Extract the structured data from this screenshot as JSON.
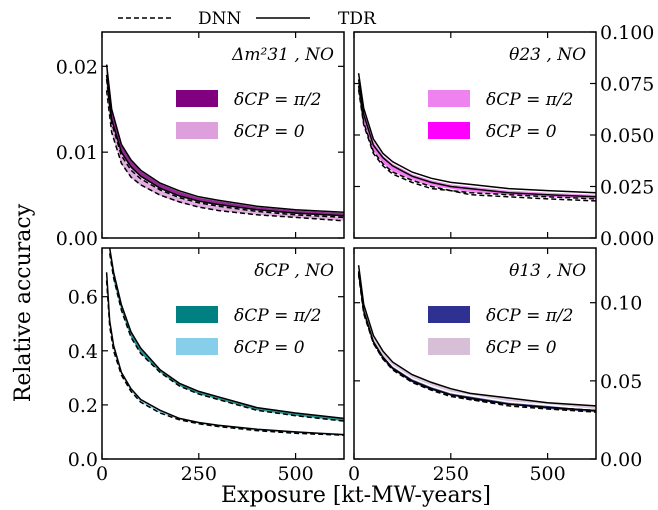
{
  "xlabel": "Exposure [kt-MW-years]",
  "ylabel": "Relative accuracy",
  "top_legend": {
    "dnn_label": "DNN",
    "tdr_label": "TDR"
  },
  "chart_data": [
    {
      "type": "line",
      "panel": "top-left",
      "annotation": "Δm²31 , NO",
      "xlim": [
        0,
        625
      ],
      "ylim": [
        0,
        0.024
      ],
      "x_ticks": [
        0,
        250,
        500
      ],
      "x_tick_labels": [
        "",
        "",
        ""
      ],
      "y_ticks": [
        0,
        0.01,
        0.02
      ],
      "y_tick_labels": [
        "0.00",
        "0.01",
        "0.02"
      ],
      "y_axis_side": "left",
      "legend": [
        {
          "label": "δCP = π/2",
          "color": "#800080"
        },
        {
          "label": "δCP = 0",
          "color": "#dda0dd"
        }
      ],
      "band_pi2": {
        "color": "#800080",
        "x": [
          12,
          25,
          50,
          75,
          100,
          150,
          200,
          250,
          300,
          400,
          500,
          625
        ],
        "lower": [
          0.0185,
          0.0135,
          0.0098,
          0.0081,
          0.0071,
          0.0057,
          0.0048,
          0.0042,
          0.0038,
          0.0032,
          0.0028,
          0.0025
        ],
        "upper": [
          0.02,
          0.0148,
          0.0108,
          0.009,
          0.0078,
          0.0063,
          0.0054,
          0.0047,
          0.0043,
          0.0036,
          0.0032,
          0.0029
        ]
      },
      "band_0": {
        "color": "#dda0dd",
        "x": [
          12,
          25,
          50,
          75,
          100,
          150,
          200,
          250,
          300,
          400,
          500,
          625
        ],
        "lower": [
          0.017,
          0.0122,
          0.0086,
          0.007,
          0.0061,
          0.0049,
          0.0041,
          0.0036,
          0.0032,
          0.0027,
          0.0024,
          0.002
        ],
        "upper": [
          0.019,
          0.0136,
          0.0097,
          0.008,
          0.007,
          0.0056,
          0.0047,
          0.0041,
          0.0037,
          0.0031,
          0.0027,
          0.0024
        ]
      },
      "tdr_lines": [
        {
          "x": [
            12,
            25,
            50,
            75,
            100,
            150,
            200,
            250,
            300,
            400,
            500,
            625
          ],
          "y": [
            0.0202,
            0.015,
            0.0109,
            0.0091,
            0.0079,
            0.0064,
            0.0055,
            0.0048,
            0.0044,
            0.0037,
            0.0033,
            0.003
          ]
        },
        {
          "x": [
            12,
            25,
            50,
            75,
            100,
            150,
            200,
            250,
            300,
            400,
            500,
            625
          ],
          "y": [
            0.019,
            0.0138,
            0.01,
            0.0083,
            0.0072,
            0.0058,
            0.0049,
            0.0043,
            0.0039,
            0.0033,
            0.0029,
            0.0026
          ]
        }
      ],
      "dnn_lines": [
        {
          "x": [
            12,
            25,
            50,
            75,
            100,
            150,
            200,
            250,
            300,
            400,
            500,
            625
          ],
          "y": [
            0.0185,
            0.0134,
            0.0096,
            0.0079,
            0.0069,
            0.0056,
            0.0047,
            0.0041,
            0.0037,
            0.0031,
            0.0027,
            0.0024
          ]
        },
        {
          "x": [
            12,
            25,
            50,
            75,
            100,
            150,
            200,
            250,
            300,
            400,
            500,
            625
          ],
          "y": [
            0.0172,
            0.0123,
            0.0087,
            0.0071,
            0.0062,
            0.005,
            0.0042,
            0.0036,
            0.0032,
            0.0027,
            0.0024,
            0.002
          ]
        }
      ]
    },
    {
      "type": "line",
      "panel": "top-right",
      "annotation": "θ23 , NO",
      "xlim": [
        0,
        625
      ],
      "ylim": [
        0,
        0.1
      ],
      "x_ticks": [
        0,
        250,
        500
      ],
      "x_tick_labels": [
        "",
        "",
        ""
      ],
      "y_ticks": [
        0,
        0.025,
        0.05,
        0.075,
        0.1
      ],
      "y_tick_labels": [
        "0.000",
        "0.025",
        "0.050",
        "0.075",
        "0.100"
      ],
      "y_axis_side": "right",
      "legend": [
        {
          "label": "δCP = π/2",
          "color": "#ee82ee"
        },
        {
          "label": "δCP = 0",
          "color": "#ff00ff"
        }
      ],
      "band_pi2": {
        "color": "#ee82ee",
        "x": [
          12,
          25,
          50,
          75,
          100,
          150,
          200,
          250,
          300,
          400,
          500,
          625
        ],
        "lower": [
          0.073,
          0.055,
          0.042,
          0.036,
          0.032,
          0.028,
          0.025,
          0.024,
          0.022,
          0.021,
          0.02,
          0.019
        ],
        "upper": [
          0.079,
          0.062,
          0.047,
          0.04,
          0.036,
          0.031,
          0.028,
          0.026,
          0.025,
          0.023,
          0.022,
          0.021
        ]
      },
      "band_0": {
        "color": "#ff00ff",
        "x": [
          12,
          25,
          50,
          75,
          100,
          150,
          200,
          250,
          300,
          400,
          500,
          625
        ],
        "lower": [
          0.074,
          0.057,
          0.043,
          0.037,
          0.033,
          0.029,
          0.026,
          0.024,
          0.023,
          0.021,
          0.02,
          0.019
        ],
        "upper": [
          0.078,
          0.061,
          0.046,
          0.039,
          0.035,
          0.03,
          0.027,
          0.025,
          0.024,
          0.022,
          0.021,
          0.02
        ]
      },
      "tdr_lines": [
        {
          "x": [
            12,
            25,
            50,
            75,
            100,
            150,
            200,
            250,
            300,
            400,
            500,
            625
          ],
          "y": [
            0.08,
            0.063,
            0.048,
            0.041,
            0.037,
            0.032,
            0.029,
            0.027,
            0.026,
            0.024,
            0.023,
            0.022
          ]
        },
        {
          "x": [
            12,
            25,
            50,
            75,
            100,
            150,
            200,
            250,
            300,
            400,
            500,
            625
          ],
          "y": [
            0.077,
            0.06,
            0.045,
            0.039,
            0.035,
            0.03,
            0.027,
            0.025,
            0.024,
            0.022,
            0.021,
            0.02
          ]
        }
      ],
      "dnn_lines": [
        {
          "x": [
            12,
            25,
            50,
            75,
            100,
            150,
            200,
            250,
            300,
            400,
            500,
            625
          ],
          "y": [
            0.074,
            0.056,
            0.042,
            0.036,
            0.032,
            0.028,
            0.025,
            0.023,
            0.022,
            0.021,
            0.02,
            0.019
          ]
        },
        {
          "x": [
            12,
            25,
            50,
            75,
            100,
            150,
            200,
            250,
            300,
            400,
            500,
            625
          ],
          "y": [
            0.072,
            0.055,
            0.041,
            0.035,
            0.031,
            0.027,
            0.024,
            0.023,
            0.021,
            0.02,
            0.019,
            0.018
          ]
        }
      ]
    },
    {
      "type": "line",
      "panel": "bottom-left",
      "annotation": "δCP , NO",
      "xlim": [
        0,
        625
      ],
      "ylim": [
        0,
        0.78
      ],
      "x_ticks": [
        0,
        250,
        500
      ],
      "x_tick_labels": [
        "0",
        "250",
        "500"
      ],
      "y_ticks": [
        0,
        0.2,
        0.4,
        0.6
      ],
      "y_tick_labels": [
        "0.0",
        "0.2",
        "0.4",
        "0.6"
      ],
      "y_axis_side": "left",
      "legend": [
        {
          "label": "δCP = π/2",
          "color": "#008080"
        },
        {
          "label": "δCP = 0",
          "color": "#87ceeb"
        }
      ],
      "band_pi2": {
        "color": "#008080",
        "x": [
          20,
          30,
          50,
          75,
          100,
          150,
          200,
          250,
          300,
          400,
          500,
          625
        ],
        "lower": [
          0.76,
          0.66,
          0.55,
          0.45,
          0.39,
          0.32,
          0.27,
          0.24,
          0.22,
          0.18,
          0.16,
          0.14
        ],
        "upper": [
          0.78,
          0.69,
          0.57,
          0.47,
          0.41,
          0.33,
          0.28,
          0.25,
          0.23,
          0.19,
          0.17,
          0.15
        ]
      },
      "band_0": {
        "color": "#87ceeb",
        "x": [
          12,
          20,
          30,
          50,
          75,
          100,
          150,
          200,
          250,
          300,
          400,
          500,
          625
        ],
        "lower": [
          0.66,
          0.49,
          0.4,
          0.31,
          0.25,
          0.21,
          0.17,
          0.145,
          0.13,
          0.12,
          0.105,
          0.095,
          0.09
        ],
        "upper": [
          0.69,
          0.51,
          0.42,
          0.32,
          0.26,
          0.22,
          0.18,
          0.15,
          0.135,
          0.125,
          0.11,
          0.1,
          0.095
        ]
      },
      "tdr_lines": [
        {
          "x": [
            20,
            30,
            50,
            75,
            100,
            150,
            200,
            250,
            300,
            400,
            500,
            625
          ],
          "y": [
            0.78,
            0.69,
            0.57,
            0.47,
            0.41,
            0.33,
            0.28,
            0.25,
            0.23,
            0.19,
            0.17,
            0.15
          ]
        },
        {
          "x": [
            12,
            20,
            30,
            50,
            75,
            100,
            150,
            200,
            250,
            300,
            400,
            500,
            625
          ],
          "y": [
            0.69,
            0.51,
            0.42,
            0.32,
            0.26,
            0.22,
            0.18,
            0.15,
            0.135,
            0.125,
            0.11,
            0.1,
            0.09
          ]
        }
      ],
      "dnn_lines": [
        {
          "x": [
            20,
            30,
            50,
            75,
            100,
            150,
            200,
            250,
            300,
            400,
            500,
            625
          ],
          "y": [
            0.76,
            0.67,
            0.55,
            0.45,
            0.39,
            0.32,
            0.27,
            0.24,
            0.22,
            0.18,
            0.16,
            0.14
          ]
        },
        {
          "x": [
            12,
            20,
            30,
            50,
            75,
            100,
            150,
            200,
            250,
            300,
            400,
            500,
            625
          ],
          "y": [
            0.66,
            0.49,
            0.4,
            0.31,
            0.25,
            0.21,
            0.17,
            0.145,
            0.13,
            0.12,
            0.105,
            0.095,
            0.088
          ]
        }
      ]
    },
    {
      "type": "line",
      "panel": "bottom-right",
      "annotation": "θ13 , NO",
      "xlim": [
        0,
        625
      ],
      "ylim": [
        0,
        0.135
      ],
      "x_ticks": [
        0,
        250,
        500
      ],
      "x_tick_labels": [
        "0",
        "250",
        "500"
      ],
      "y_ticks": [
        0,
        0.05,
        0.1
      ],
      "y_tick_labels": [
        "0.00",
        "0.05",
        "0.10"
      ],
      "y_axis_side": "right",
      "legend": [
        {
          "label": "δCP = π/2",
          "color": "#2e3192"
        },
        {
          "label": "δCP = 0",
          "color": "#d8bfd8"
        }
      ],
      "band_pi2": {
        "color": "#2e3192",
        "x": [
          12,
          25,
          50,
          75,
          100,
          150,
          200,
          250,
          300,
          400,
          500,
          625
        ],
        "lower": [
          0.118,
          0.093,
          0.074,
          0.064,
          0.057,
          0.049,
          0.044,
          0.041,
          0.038,
          0.035,
          0.032,
          0.03
        ],
        "upper": [
          0.122,
          0.096,
          0.076,
          0.066,
          0.059,
          0.051,
          0.046,
          0.042,
          0.04,
          0.036,
          0.034,
          0.031
        ]
      },
      "band_0": {
        "color": "#d8bfd8",
        "x": [
          12,
          25,
          50,
          75,
          100,
          150,
          200,
          250,
          300,
          400,
          500,
          625
        ],
        "lower": [
          0.121,
          0.096,
          0.076,
          0.066,
          0.06,
          0.052,
          0.047,
          0.043,
          0.041,
          0.037,
          0.035,
          0.032
        ],
        "upper": [
          0.124,
          0.099,
          0.079,
          0.069,
          0.062,
          0.054,
          0.049,
          0.045,
          0.042,
          0.039,
          0.036,
          0.034
        ]
      },
      "tdr_lines": [
        {
          "x": [
            12,
            25,
            50,
            75,
            100,
            150,
            200,
            250,
            300,
            400,
            500,
            625
          ],
          "y": [
            0.124,
            0.099,
            0.079,
            0.069,
            0.062,
            0.054,
            0.049,
            0.045,
            0.042,
            0.039,
            0.036,
            0.034
          ]
        },
        {
          "x": [
            12,
            25,
            50,
            75,
            100,
            150,
            200,
            250,
            300,
            400,
            500,
            625
          ],
          "y": [
            0.12,
            0.095,
            0.075,
            0.065,
            0.058,
            0.05,
            0.045,
            0.041,
            0.039,
            0.035,
            0.033,
            0.031
          ]
        }
      ],
      "dnn_lines": [
        {
          "x": [
            12,
            25,
            50,
            75,
            100,
            150,
            200,
            250,
            300,
            400,
            500,
            625
          ],
          "y": [
            0.118,
            0.093,
            0.074,
            0.064,
            0.057,
            0.049,
            0.044,
            0.04,
            0.038,
            0.034,
            0.032,
            0.03
          ]
        },
        {
          "x": [
            12,
            25,
            50,
            75,
            100,
            150,
            200,
            250,
            300,
            400,
            500,
            625
          ],
          "y": [
            0.119,
            0.094,
            0.074,
            0.064,
            0.058,
            0.05,
            0.045,
            0.041,
            0.038,
            0.035,
            0.033,
            0.031
          ]
        }
      ]
    }
  ]
}
